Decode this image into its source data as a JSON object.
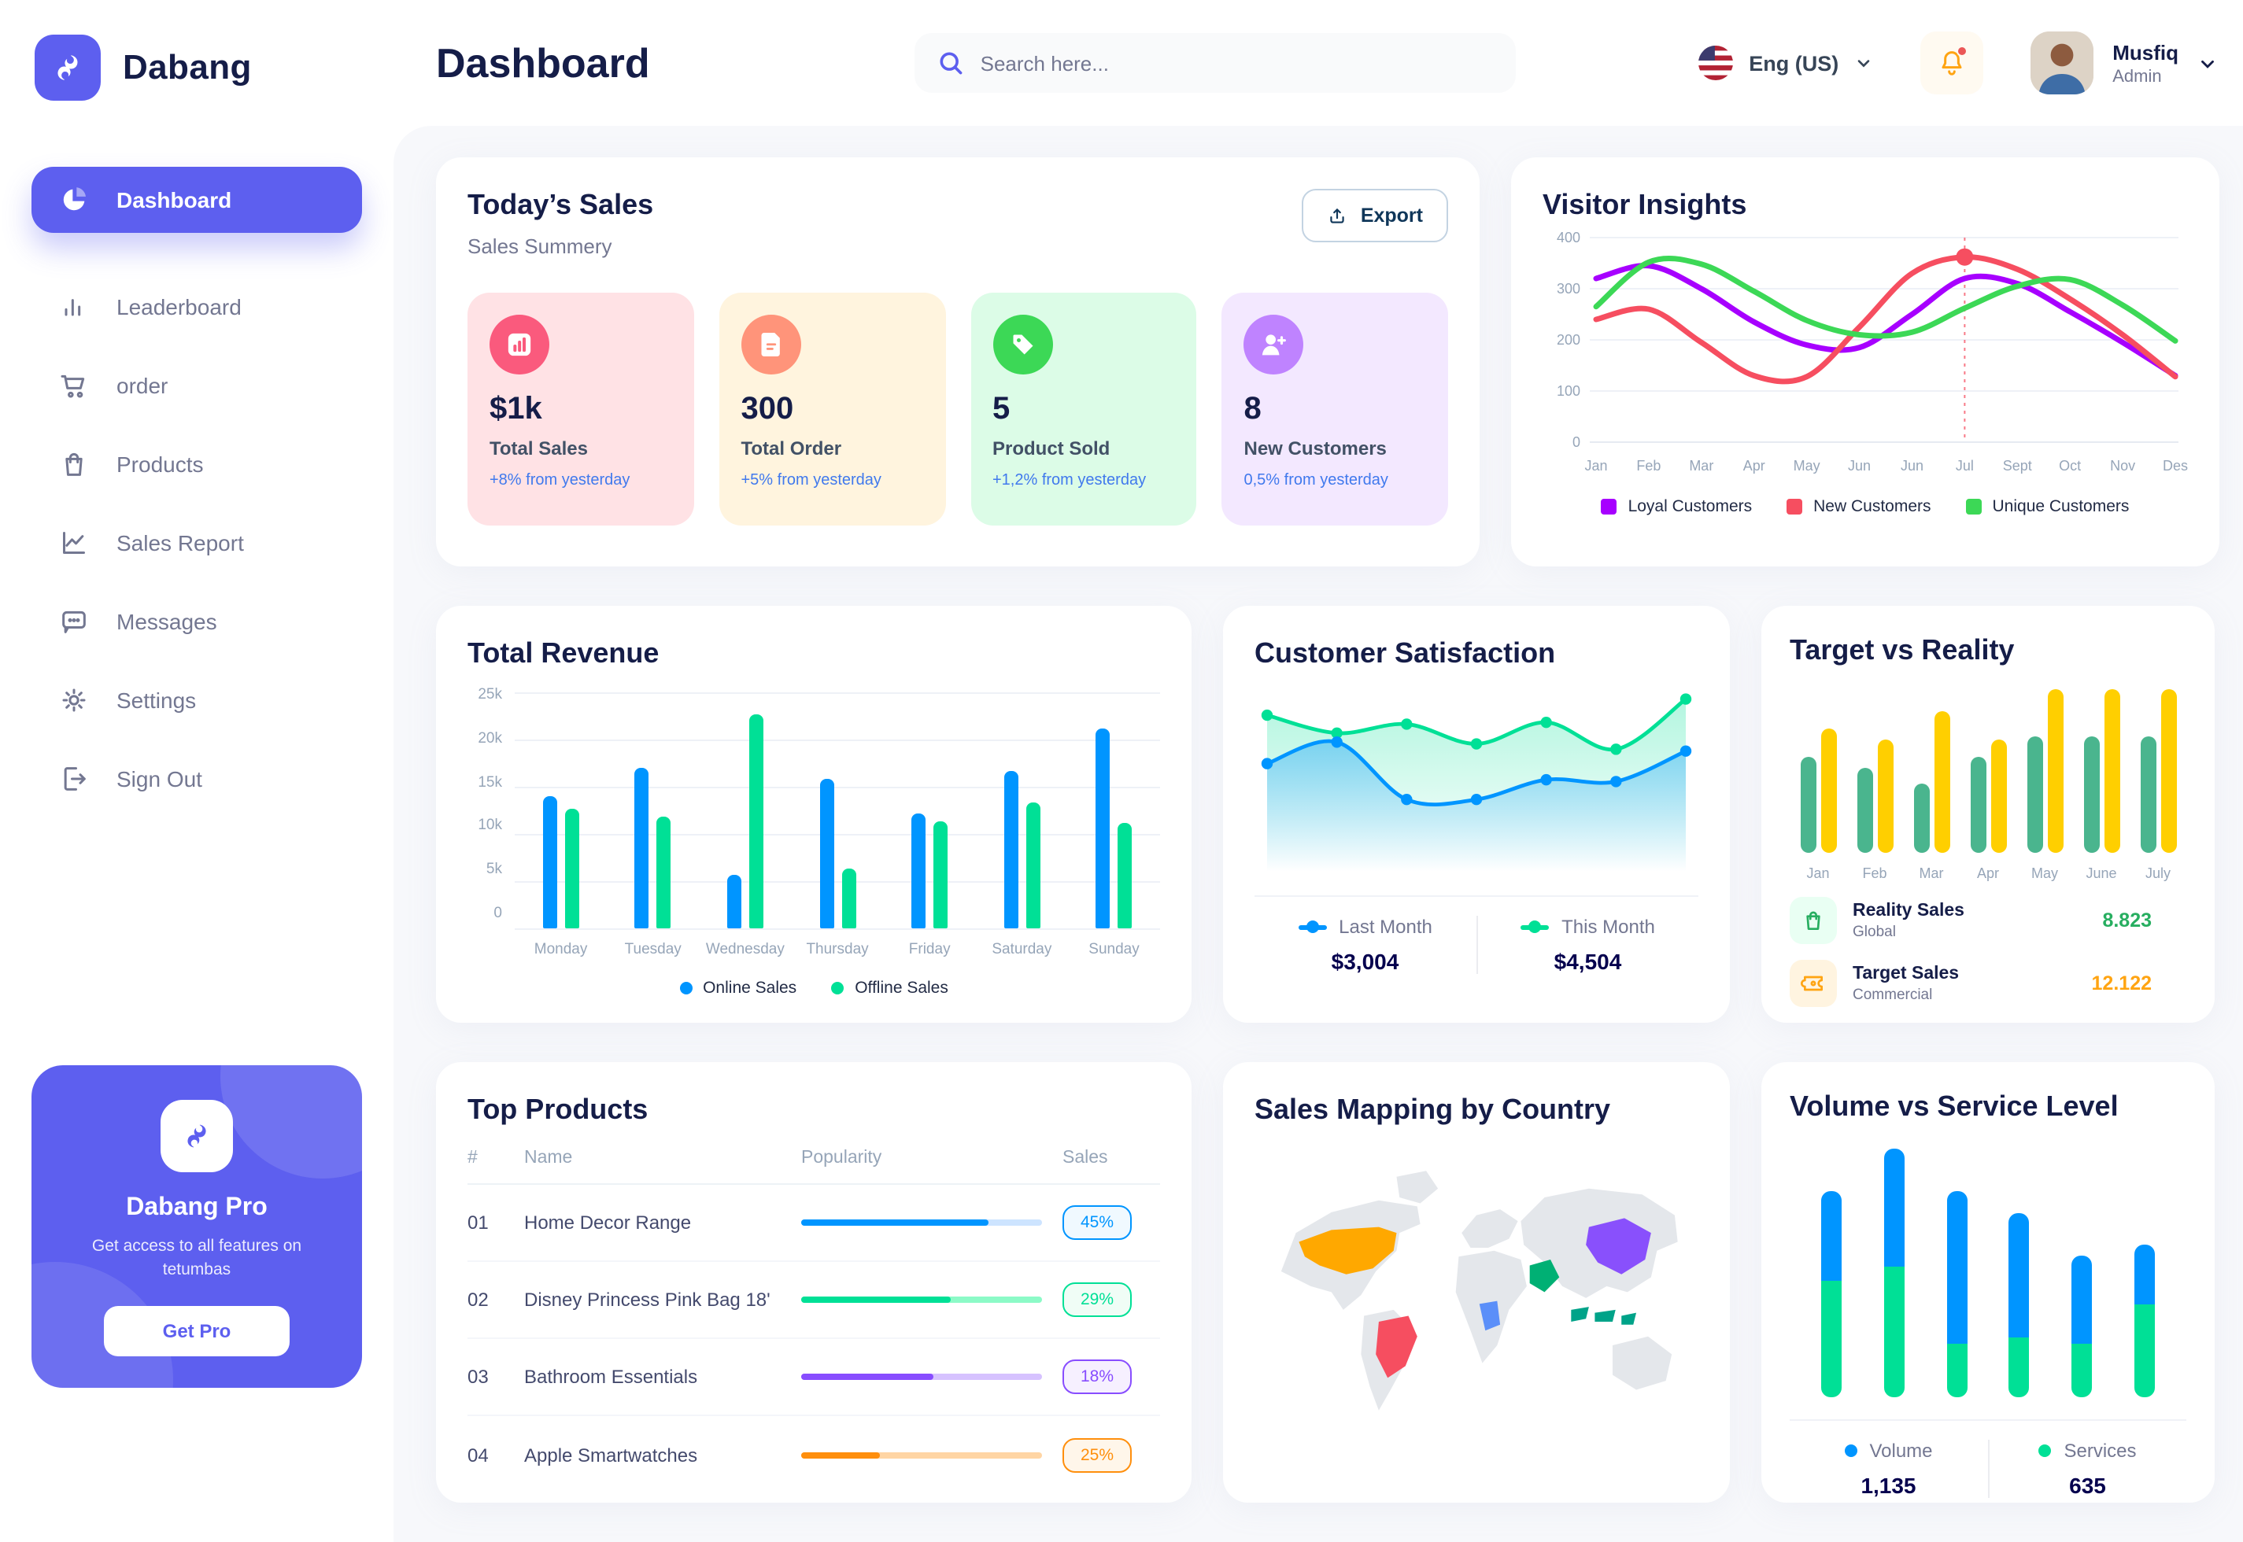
{
  "brand": {
    "name": "Dabang"
  },
  "header": {
    "title": "Dashboard",
    "search_placeholder": "Search here...",
    "language": "Eng (US)",
    "user": {
      "name": "Musfiq",
      "role": "Admin"
    }
  },
  "sidebar": {
    "items": [
      {
        "label": "Dashboard",
        "icon": "pie-chart",
        "active": true
      },
      {
        "label": "Leaderboard",
        "icon": "bar-chart",
        "active": false
      },
      {
        "label": "order",
        "icon": "cart",
        "active": false
      },
      {
        "label": "Products",
        "icon": "bag",
        "active": false
      },
      {
        "label": "Sales Report",
        "icon": "line-chart",
        "active": false
      },
      {
        "label": "Messages",
        "icon": "message",
        "active": false
      },
      {
        "label": "Settings",
        "icon": "gear",
        "active": false
      },
      {
        "label": "Sign Out",
        "icon": "sign-out",
        "active": false
      }
    ],
    "promo": {
      "title": "Dabang Pro",
      "subtitle": "Get access to all features on tetumbas",
      "button": "Get Pro"
    }
  },
  "today_sales": {
    "title": "Today’s Sales",
    "subtitle": "Sales Summery",
    "export_label": "Export",
    "stats": [
      {
        "value": "$1k",
        "label": "Total Sales",
        "delta": "+8% from yesterday",
        "bg": "#FFE2E5",
        "icon_bg": "#FA5A7D",
        "icon": "chart"
      },
      {
        "value": "300",
        "label": "Total Order",
        "delta": "+5% from yesterday",
        "bg": "#FFF4DE",
        "icon_bg": "#FF947A",
        "icon": "file"
      },
      {
        "value": "5",
        "label": "Product Sold",
        "delta": "+1,2% from yesterday",
        "bg": "#DCFCE7",
        "icon_bg": "#3CD856",
        "icon": "tag"
      },
      {
        "value": "8",
        "label": "New Customers",
        "delta": "0,5% from yesterday",
        "bg": "#F3E8FF",
        "icon_bg": "#BF83FF",
        "icon": "user-plus"
      }
    ]
  },
  "top_products": {
    "title": "Top Products",
    "headers": [
      "#",
      "Name",
      "Popularity",
      "Sales"
    ],
    "rows": [
      {
        "num": "01",
        "name": "Home Decor Range",
        "popularity_pct": 78,
        "sales": "45%",
        "color": "#0095FF",
        "track": "#CDE4FF",
        "badge_bg": "#F0F9FF"
      },
      {
        "num": "02",
        "name": "Disney Princess Pink Bag 18'",
        "popularity_pct": 62,
        "sales": "29%",
        "color": "#00E096",
        "track": "#8CFAC7",
        "badge_bg": "#F0FDF6"
      },
      {
        "num": "03",
        "name": "Bathroom Essentials",
        "popularity_pct": 55,
        "sales": "18%",
        "color": "#884DFF",
        "track": "#D6C2FF",
        "badge_bg": "#F6F0FF"
      },
      {
        "num": "04",
        "name": "Apple Smartwatches",
        "popularity_pct": 33,
        "sales": "25%",
        "color": "#FF8F0D",
        "track": "#FFD5A4",
        "badge_bg": "#FFF6EA"
      }
    ]
  },
  "sales_mapping": {
    "title": "Sales Mapping by Country",
    "countries": [
      {
        "key": "us",
        "name": "United States",
        "color": "#FFA800"
      },
      {
        "key": "brazil",
        "name": "Brazil",
        "color": "#F64E60"
      },
      {
        "key": "saudi",
        "name": "Saudi Arabia",
        "color": "#00B074"
      },
      {
        "key": "congo",
        "name": "DR Congo",
        "color": "#5B8FF9"
      },
      {
        "key": "china",
        "name": "China",
        "color": "#8950FC"
      },
      {
        "key": "indonesia",
        "name": "Indonesia",
        "color": "#00A389"
      }
    ],
    "base_color": "#E4E7EB"
  },
  "chart_data": [
    {
      "id": "visitor-insights",
      "type": "line",
      "title": "Visitor Insights",
      "x": [
        "Jan",
        "Feb",
        "Mar",
        "Apr",
        "May",
        "Jun",
        "Jun",
        "Jul",
        "Sept",
        "Oct",
        "Nov",
        "Des"
      ],
      "ylim": [
        0,
        400
      ],
      "yticks": [
        0,
        100,
        200,
        300,
        400
      ],
      "grid": true,
      "legend_position": "bottom",
      "series": [
        {
          "name": "Loyal Customers",
          "color": "#A700FF",
          "values": [
            320,
            345,
            300,
            235,
            190,
            185,
            250,
            320,
            310,
            255,
            195,
            130
          ]
        },
        {
          "name": "New Customers",
          "color": "#F64E60",
          "values": [
            240,
            260,
            195,
            130,
            128,
            225,
            330,
            362,
            338,
            280,
            210,
            128
          ]
        },
        {
          "name": "Unique Customers",
          "color": "#3CD856",
          "values": [
            265,
            352,
            348,
            295,
            238,
            210,
            215,
            262,
            305,
            318,
            268,
            198
          ]
        }
      ],
      "annotation": {
        "x_index": 7,
        "x_label": "Jul",
        "series": "New Customers",
        "value": 362
      }
    },
    {
      "id": "total-revenue",
      "type": "bar",
      "title": "Total Revenue",
      "categories": [
        "Monday",
        "Tuesday",
        "Wednesday",
        "Thursday",
        "Friday",
        "Saturday",
        "Sunday"
      ],
      "ylim": [
        0,
        25000
      ],
      "yticks": [
        "0",
        "5k",
        "10k",
        "15k",
        "20k",
        "25k"
      ],
      "grid": true,
      "legend_position": "bottom",
      "series": [
        {
          "name": "Online Sales",
          "color": "#0095FF",
          "values": [
            14000,
            17000,
            5700,
            15800,
            12100,
            16700,
            21200
          ]
        },
        {
          "name": "Offline Sales",
          "color": "#00E096",
          "values": [
            12700,
            11900,
            22700,
            6400,
            11300,
            13400,
            11100
          ]
        }
      ]
    },
    {
      "id": "customer-satisfaction",
      "type": "area",
      "title": "Customer Satisfaction",
      "ylim": [
        0,
        100
      ],
      "grid": false,
      "legend_position": "bottom",
      "series": [
        {
          "name": "Last Month",
          "color": "#0095FF",
          "total_label": "$3,004",
          "values": [
            55,
            67,
            35,
            35,
            46,
            45,
            62
          ]
        },
        {
          "name": "This Month",
          "color": "#00E096",
          "total_label": "$4,504",
          "values": [
            82,
            72,
            77,
            66,
            78,
            63,
            91
          ]
        }
      ]
    },
    {
      "id": "target-vs-reality",
      "type": "bar",
      "title": "Target vs Reality",
      "categories": [
        "Jan",
        "Feb",
        "Mar",
        "Apr",
        "May",
        "June",
        "July"
      ],
      "ylim": [
        0,
        100
      ],
      "grid": false,
      "legend_position": "bottom",
      "series": [
        {
          "name": "Reality Sales",
          "subtitle": "Global",
          "color": "#4AB58E",
          "value_label": "8.823",
          "value_color": "#27AE60",
          "icon_bg": "#E9FFF3",
          "values": [
            58,
            51,
            42,
            58,
            70,
            70,
            70
          ]
        },
        {
          "name": "Target Sales",
          "subtitle": "Commercial",
          "color": "#FFCF00",
          "value_label": "12.122",
          "value_color": "#FFA412",
          "icon_bg": "#FFF4E0",
          "values": [
            75,
            68,
            85,
            68,
            98,
            98,
            98
          ]
        }
      ]
    },
    {
      "id": "volume-vs-service-level",
      "type": "stacked-bar",
      "title": "Volume vs Service Level",
      "grid": false,
      "legend_position": "bottom",
      "series": [
        {
          "name": "Volume",
          "color": "#0095FF",
          "total_label": "1,135",
          "values": [
            25,
            33,
            43,
            35,
            25,
            17
          ]
        },
        {
          "name": "Services",
          "color": "#00E096",
          "total_label": "635",
          "values": [
            33,
            37,
            15,
            17,
            15,
            26
          ]
        }
      ]
    }
  ]
}
